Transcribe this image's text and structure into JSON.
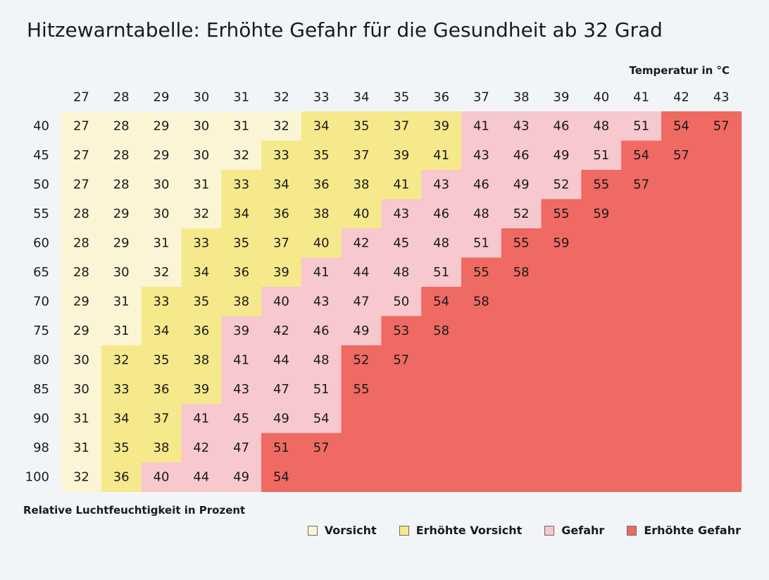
{
  "title": "Hitzewarntabelle: Erhöhte Gefahr für die Gesundheit ab 32 Grad",
  "x_axis_label": "Temperatur in °C",
  "y_axis_label": "Relative Luchtfeuchtigkeit in Prozent",
  "legend": [
    {
      "name": "Vorsicht",
      "color": "#fbf5d6"
    },
    {
      "name": "Erhöhte Vorsicht",
      "color": "#f6e98b"
    },
    {
      "name": "Gefahr",
      "color": "#f7c8cd"
    },
    {
      "name": "Erhöhte Gefahr",
      "color": "#ee6a62"
    }
  ],
  "chart_data": {
    "type": "heatmap",
    "title": "Hitzewarntabelle: Erhöhte Gefahr für die Gesundheit ab 32 Grad",
    "xlabel": "Temperatur in °C",
    "ylabel": "Relative Luchtfeuchtigkeit in Prozent",
    "columns": [
      27,
      28,
      29,
      30,
      31,
      32,
      33,
      34,
      35,
      36,
      37,
      38,
      39,
      40,
      41,
      42,
      43
    ],
    "rows": [
      40,
      45,
      50,
      55,
      60,
      65,
      70,
      75,
      80,
      85,
      90,
      98,
      100
    ],
    "values": [
      [
        27,
        28,
        29,
        30,
        31,
        32,
        34,
        35,
        37,
        39,
        41,
        43,
        46,
        48,
        51,
        54,
        57
      ],
      [
        27,
        28,
        29,
        30,
        32,
        33,
        35,
        37,
        39,
        41,
        43,
        46,
        49,
        51,
        54,
        57,
        null
      ],
      [
        27,
        28,
        30,
        31,
        33,
        34,
        36,
        38,
        41,
        43,
        46,
        49,
        52,
        55,
        57,
        null,
        null
      ],
      [
        28,
        29,
        30,
        32,
        34,
        36,
        38,
        40,
        43,
        46,
        48,
        52,
        55,
        59,
        null,
        null,
        null
      ],
      [
        28,
        29,
        31,
        33,
        35,
        37,
        40,
        42,
        45,
        48,
        51,
        55,
        59,
        null,
        null,
        null,
        null
      ],
      [
        28,
        30,
        32,
        34,
        36,
        39,
        41,
        44,
        48,
        51,
        55,
        58,
        null,
        null,
        null,
        null,
        null
      ],
      [
        29,
        31,
        33,
        35,
        38,
        40,
        43,
        47,
        50,
        54,
        58,
        null,
        null,
        null,
        null,
        null,
        null
      ],
      [
        29,
        31,
        34,
        36,
        39,
        42,
        46,
        49,
        53,
        58,
        null,
        null,
        null,
        null,
        null,
        null,
        null
      ],
      [
        30,
        32,
        35,
        38,
        41,
        44,
        48,
        52,
        57,
        null,
        null,
        null,
        null,
        null,
        null,
        null,
        null
      ],
      [
        30,
        33,
        36,
        39,
        43,
        47,
        51,
        55,
        null,
        null,
        null,
        null,
        null,
        null,
        null,
        null,
        null
      ],
      [
        31,
        34,
        37,
        41,
        45,
        49,
        54,
        null,
        null,
        null,
        null,
        null,
        null,
        null,
        null,
        null,
        null
      ],
      [
        31,
        35,
        38,
        42,
        47,
        51,
        57,
        null,
        null,
        null,
        null,
        null,
        null,
        null,
        null,
        null,
        null
      ],
      [
        32,
        36,
        40,
        44,
        49,
        54,
        null,
        null,
        null,
        null,
        null,
        null,
        null,
        null,
        null,
        null,
        null
      ]
    ],
    "categories": [
      [
        0,
        0,
        0,
        0,
        0,
        0,
        1,
        1,
        1,
        1,
        2,
        2,
        2,
        2,
        2,
        3,
        3
      ],
      [
        0,
        0,
        0,
        0,
        0,
        1,
        1,
        1,
        1,
        1,
        2,
        2,
        2,
        2,
        3,
        3,
        3
      ],
      [
        0,
        0,
        0,
        0,
        1,
        1,
        1,
        1,
        1,
        2,
        2,
        2,
        2,
        3,
        3,
        3,
        3
      ],
      [
        0,
        0,
        0,
        0,
        1,
        1,
        1,
        1,
        2,
        2,
        2,
        2,
        3,
        3,
        3,
        3,
        3
      ],
      [
        0,
        0,
        0,
        1,
        1,
        1,
        1,
        2,
        2,
        2,
        2,
        3,
        3,
        3,
        3,
        3,
        3
      ],
      [
        0,
        0,
        0,
        1,
        1,
        1,
        2,
        2,
        2,
        2,
        3,
        3,
        3,
        3,
        3,
        3,
        3
      ],
      [
        0,
        0,
        1,
        1,
        1,
        2,
        2,
        2,
        2,
        3,
        3,
        3,
        3,
        3,
        3,
        3,
        3
      ],
      [
        0,
        0,
        1,
        1,
        2,
        2,
        2,
        2,
        3,
        3,
        3,
        3,
        3,
        3,
        3,
        3,
        3
      ],
      [
        0,
        1,
        1,
        1,
        2,
        2,
        2,
        3,
        3,
        3,
        3,
        3,
        3,
        3,
        3,
        3,
        3
      ],
      [
        0,
        1,
        1,
        1,
        2,
        2,
        2,
        3,
        3,
        3,
        3,
        3,
        3,
        3,
        3,
        3,
        3
      ],
      [
        0,
        1,
        1,
        2,
        2,
        2,
        2,
        3,
        3,
        3,
        3,
        3,
        3,
        3,
        3,
        3,
        3
      ],
      [
        0,
        1,
        1,
        2,
        2,
        3,
        3,
        3,
        3,
        3,
        3,
        3,
        3,
        3,
        3,
        3,
        3
      ],
      [
        0,
        1,
        2,
        2,
        2,
        3,
        3,
        3,
        3,
        3,
        3,
        3,
        3,
        3,
        3,
        3,
        3
      ]
    ],
    "category_names": [
      "Vorsicht",
      "Erhöhte Vorsicht",
      "Gefahr",
      "Erhöhte Gefahr"
    ],
    "category_colors": [
      "#fbf5d6",
      "#f6e98b",
      "#f7c8cd",
      "#ee6a62"
    ],
    "legend_position": "bottom-right",
    "grid": false
  }
}
